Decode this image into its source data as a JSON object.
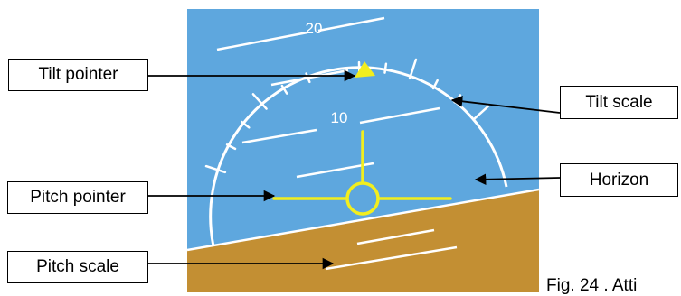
{
  "colors": {
    "sky": "#5ea7de",
    "ground": "#c38f33",
    "symbol": "#f2ee1e",
    "scale": "#ffffff",
    "leader": "#000000"
  },
  "pitch_labels": [
    "20",
    "10"
  ],
  "callouts": {
    "tilt_pointer": "Tilt pointer",
    "tilt_scale": "Tilt scale",
    "pitch_pointer": "Pitch pointer",
    "horizon": "Horizon",
    "pitch_scale": "Pitch scale"
  },
  "caption": "Fig. 24 . Atti"
}
